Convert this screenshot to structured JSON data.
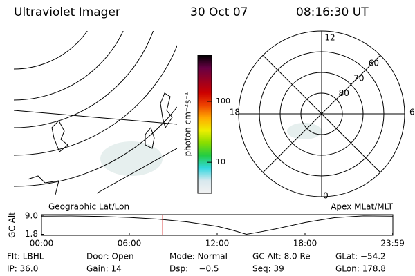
{
  "header": {
    "title": "Ultraviolet Imager",
    "date": "30 Oct 07",
    "time": "08:16:30 UT"
  },
  "colorbar": {
    "label": "photon cm⁻²s⁻¹",
    "log": true,
    "ylim": [
      3.1,
      575
    ],
    "yticks": [
      10,
      100
    ],
    "colors": [
      "#f2f2f2",
      "#d8e8ee",
      "#33d8e0",
      "#22cc44",
      "#88dd00",
      "#eeee00",
      "#ffaa00",
      "#ee4400",
      "#cc0000",
      "#990022",
      "#660044",
      "#000000"
    ]
  },
  "geo_map": {
    "label": "Geographic Lat/Lon"
  },
  "polar": {
    "label": "Apex MLat/MLT",
    "rlim": [
      90,
      50
    ],
    "mlt_labels": [
      "12",
      "6",
      "0",
      "18"
    ],
    "rings": [
      80,
      70,
      60
    ]
  },
  "altitude": {
    "ylabel": "GC Alt",
    "xlim": [
      0,
      24
    ],
    "ylim": [
      1.4,
      9.5
    ],
    "xticks": [
      {
        "value": 0,
        "label": "00:00"
      },
      {
        "value": 6,
        "label": "06:00"
      },
      {
        "value": 12,
        "label": "12:00"
      },
      {
        "value": 18,
        "label": "18:00"
      },
      {
        "value": 23.983,
        "label": "23:59"
      }
    ],
    "yticks": [
      {
        "value": 9.0,
        "label": "9.0"
      },
      {
        "value": 1.8,
        "label": "1.8"
      }
    ],
    "x": [
      0,
      2,
      4,
      6,
      8,
      10,
      12,
      13,
      14,
      15,
      16,
      18,
      20,
      22,
      24
    ],
    "values": [
      8.9,
      8.95,
      8.8,
      8.4,
      7.7,
      6.6,
      4.9,
      3.5,
      1.8,
      2.8,
      3.9,
      6.4,
      8.3,
      9.0,
      8.9
    ],
    "marker_x": 8.275,
    "marker_color": "#cc0000"
  },
  "info": [
    [
      "Flt: LBHL",
      "Door: Open",
      "Mode: Normal",
      "GC Alt: 8.0 Re",
      "GLat: −54.2"
    ],
    [
      "IP: 36.0",
      "Gain: 14",
      "Dsp:    −0.5",
      "Seq: 39",
      "GLon: 178.8"
    ]
  ]
}
